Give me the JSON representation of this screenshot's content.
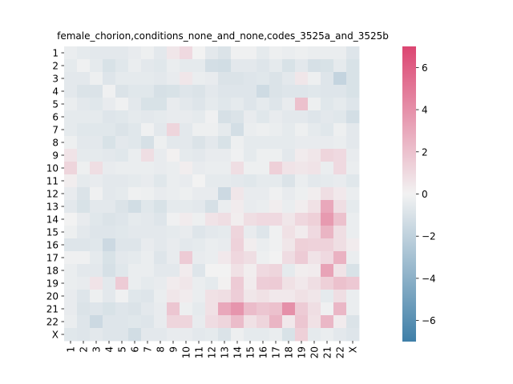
{
  "chart_data": {
    "type": "heatmap",
    "title": "female_chorion,conditions_none_and_none,codes_3525a_and_3525b",
    "xlabel": "",
    "ylabel": "",
    "row_labels": [
      "1",
      "2",
      "3",
      "4",
      "5",
      "6",
      "7",
      "8",
      "9",
      "10",
      "11",
      "12",
      "13",
      "14",
      "15",
      "16",
      "17",
      "18",
      "19",
      "20",
      "21",
      "22",
      "X"
    ],
    "col_labels": [
      "1",
      "2",
      "3",
      "4",
      "5",
      "6",
      "7",
      "8",
      "9",
      "10",
      "11",
      "12",
      "13",
      "14",
      "15",
      "16",
      "17",
      "18",
      "19",
      "20",
      "21",
      "22",
      "X"
    ],
    "colorbar": {
      "range": [
        -7,
        7
      ],
      "ticks": [
        -6,
        -4,
        -2,
        0,
        2,
        4,
        6
      ],
      "tick_labels": [
        "−6",
        "−4",
        "−2",
        "0",
        "2",
        "4",
        "6"
      ],
      "low_color": "#3f7fa8",
      "mid_color": "#f2f2f2",
      "high_color": "#dc4672"
    },
    "values": [
      [
        -0.3,
        -0.5,
        -0.6,
        -0.6,
        -0.6,
        -0.4,
        -0.2,
        -0.6,
        0.5,
        1.0,
        0.0,
        -0.6,
        -0.9,
        -0.1,
        -0.1,
        -0.5,
        -0.2,
        -0.3,
        -0.2,
        -0.3,
        -0.3,
        -0.3,
        -0.8
      ],
      [
        -0.5,
        -0.1,
        -0.5,
        -1.0,
        -0.7,
        -0.3,
        -0.6,
        -0.7,
        -0.3,
        -0.5,
        -0.5,
        -1.2,
        -1.3,
        -0.6,
        -0.6,
        -0.8,
        -0.5,
        -1.0,
        -0.6,
        -1.1,
        -1.0,
        -0.5,
        -1.0
      ],
      [
        -0.6,
        -0.6,
        -0.2,
        -0.8,
        -0.5,
        -0.5,
        -0.5,
        -0.6,
        -0.4,
        0.5,
        -0.3,
        -0.4,
        -0.9,
        -0.9,
        -0.8,
        -0.7,
        -0.9,
        -0.6,
        0.5,
        -0.2,
        -0.8,
        -1.8,
        -1.0
      ],
      [
        -0.6,
        -0.9,
        -0.9,
        -0.1,
        -0.9,
        -0.7,
        -0.7,
        -1.1,
        -1.0,
        -0.8,
        -0.9,
        -0.6,
        -0.8,
        -0.8,
        -0.8,
        -1.4,
        -0.9,
        -0.8,
        -0.8,
        -0.7,
        -0.8,
        -0.8,
        -1.0
      ],
      [
        -0.3,
        -0.6,
        -0.7,
        -0.4,
        -0.1,
        -0.6,
        -1.0,
        -1.0,
        -0.4,
        -0.6,
        -0.8,
        -0.5,
        -0.7,
        -0.5,
        -0.8,
        -0.5,
        -0.8,
        -0.4,
        2.0,
        -0.2,
        -0.7,
        -0.5,
        -0.8
      ],
      [
        -0.5,
        -0.5,
        -0.5,
        -0.8,
        -0.7,
        -0.5,
        -0.6,
        -0.5,
        -0.4,
        -0.4,
        -0.5,
        -0.1,
        -1.1,
        -0.9,
        -0.4,
        -0.7,
        -0.4,
        -0.6,
        -0.6,
        -0.8,
        -0.6,
        -0.7,
        -1.2
      ],
      [
        -0.5,
        -0.7,
        -0.7,
        -0.7,
        -0.9,
        -0.7,
        -0.1,
        -0.6,
        1.2,
        -0.6,
        -0.2,
        -0.2,
        -0.5,
        -1.2,
        -0.3,
        -0.2,
        -0.3,
        -0.5,
        -0.2,
        -0.5,
        -0.7,
        -0.2,
        -0.6
      ],
      [
        -0.2,
        -0.6,
        -0.6,
        -1.0,
        -0.6,
        -0.7,
        -1.1,
        -0.2,
        -0.6,
        -0.6,
        -0.9,
        -0.6,
        -1.0,
        -0.2,
        -0.5,
        -0.5,
        -0.5,
        -0.5,
        -0.4,
        -0.4,
        -0.4,
        -0.3,
        -0.6
      ],
      [
        0.6,
        -0.5,
        -0.5,
        -0.6,
        -0.7,
        -0.3,
        0.8,
        -0.4,
        0.1,
        -0.5,
        -0.6,
        -0.4,
        -0.4,
        -0.1,
        -0.5,
        -0.2,
        -0.2,
        -0.6,
        0.3,
        0.5,
        1.2,
        1.0,
        -0.4
      ],
      [
        1.2,
        -0.2,
        0.8,
        -0.4,
        -0.3,
        -0.3,
        -0.3,
        -0.4,
        -0.3,
        0.2,
        -0.4,
        -0.3,
        -0.3,
        0.8,
        -0.2,
        -0.2,
        1.4,
        0.6,
        0.5,
        0.6,
        -0.3,
        1.0,
        -0.3
      ],
      [
        0.2,
        -0.5,
        -0.4,
        -0.6,
        -0.6,
        -0.5,
        -0.4,
        -0.7,
        -0.3,
        -0.4,
        0.0,
        -0.5,
        -0.5,
        -0.6,
        -0.7,
        -0.5,
        -0.5,
        -0.9,
        -0.3,
        -0.6,
        -0.5,
        -0.4,
        -0.7
      ],
      [
        -0.4,
        -0.9,
        -0.1,
        -0.6,
        -0.5,
        -0.1,
        -0.2,
        -0.4,
        -0.3,
        -0.2,
        -0.4,
        -0.4,
        -1.5,
        0.5,
        -0.4,
        -0.4,
        -0.1,
        -0.4,
        -0.2,
        0.2,
        0.8,
        0.4,
        -0.3
      ],
      [
        -0.6,
        -1.0,
        -0.6,
        -0.6,
        -0.9,
        -1.3,
        -0.7,
        -1.0,
        -0.5,
        -0.5,
        -0.6,
        -1.1,
        -0.3,
        0.3,
        -0.4,
        -0.3,
        0.2,
        -0.3,
        0.2,
        0.7,
        3.0,
        0.8,
        -0.5
      ],
      [
        0.0,
        -0.4,
        -0.7,
        -0.9,
        -0.8,
        -0.5,
        -0.6,
        -0.8,
        -0.1,
        0.3,
        -0.2,
        0.6,
        0.8,
        0.2,
        0.8,
        1.0,
        1.0,
        0.5,
        1.1,
        1.4,
        3.6,
        2.0,
        -0.3
      ],
      [
        -0.2,
        -0.6,
        -0.8,
        -0.8,
        -0.7,
        -0.6,
        -0.6,
        -0.6,
        -0.5,
        -0.4,
        -0.8,
        -0.6,
        -0.5,
        1.2,
        -0.4,
        -0.8,
        -0.1,
        0.7,
        0.3,
        1.0,
        2.5,
        0.8,
        -0.3
      ],
      [
        -0.8,
        -0.8,
        -0.7,
        -1.5,
        -0.8,
        -0.8,
        -0.4,
        -0.6,
        -0.4,
        -0.6,
        -0.5,
        -0.3,
        -0.4,
        1.3,
        0.2,
        -0.3,
        -0.1,
        0.5,
        1.4,
        1.3,
        1.3,
        0.8,
        0.3
      ],
      [
        -0.1,
        -0.1,
        -0.5,
        -1.0,
        -0.6,
        -0.5,
        -0.3,
        -0.8,
        -0.4,
        1.6,
        -0.4,
        -0.3,
        0.4,
        1.1,
        0.8,
        -0.2,
        0.0,
        0.9,
        1.6,
        0.6,
        1.0,
        2.6,
        -0.3
      ],
      [
        -0.3,
        -0.6,
        -0.6,
        -1.1,
        -0.7,
        -0.3,
        -0.3,
        -0.6,
        -0.6,
        0.3,
        -0.8,
        0.0,
        0.0,
        0.7,
        0.2,
        1.0,
        1.2,
        -0.5,
        0.2,
        0.3,
        3.2,
        0.6,
        -1.0
      ],
      [
        -0.3,
        -0.4,
        0.6,
        -0.6,
        1.6,
        -0.3,
        -0.5,
        -0.4,
        0.3,
        0.5,
        -0.3,
        -0.5,
        0.1,
        1.6,
        0.3,
        1.5,
        1.6,
        0.7,
        0.4,
        0.8,
        1.4,
        2.0,
        1.7
      ],
      [
        -0.4,
        -0.8,
        -0.2,
        -0.6,
        -0.1,
        -0.7,
        -0.8,
        -0.3,
        0.5,
        0.3,
        -0.3,
        0.7,
        0.8,
        1.5,
        0.5,
        0.7,
        0.4,
        0.4,
        0.7,
        0.5,
        -0.5,
        0.8,
        -0.3
      ],
      [
        -0.4,
        -0.9,
        -0.8,
        -1.0,
        -0.8,
        -0.9,
        -0.6,
        -0.4,
        1.8,
        -0.2,
        -0.5,
        0.7,
        3.0,
        3.8,
        2.2,
        1.8,
        2.0,
        4.0,
        1.6,
        0.8,
        -0.1,
        2.4,
        -0.3
      ],
      [
        -0.3,
        -0.8,
        -1.5,
        -0.8,
        -0.8,
        -0.7,
        -0.8,
        -0.4,
        1.2,
        1.2,
        -0.4,
        0.9,
        1.2,
        2.2,
        0.7,
        1.2,
        2.5,
        0.4,
        1.8,
        0.7,
        2.4,
        0.3,
        -0.9
      ],
      [
        -0.7,
        -0.8,
        -0.6,
        -0.8,
        -0.8,
        -1.3,
        -0.6,
        -0.6,
        -0.4,
        -0.4,
        -0.6,
        -0.5,
        -0.9,
        -0.2,
        -0.5,
        -0.5,
        -0.3,
        -1.0,
        1.4,
        -0.5,
        -0.3,
        -0.6,
        -0.8
      ]
    ]
  }
}
